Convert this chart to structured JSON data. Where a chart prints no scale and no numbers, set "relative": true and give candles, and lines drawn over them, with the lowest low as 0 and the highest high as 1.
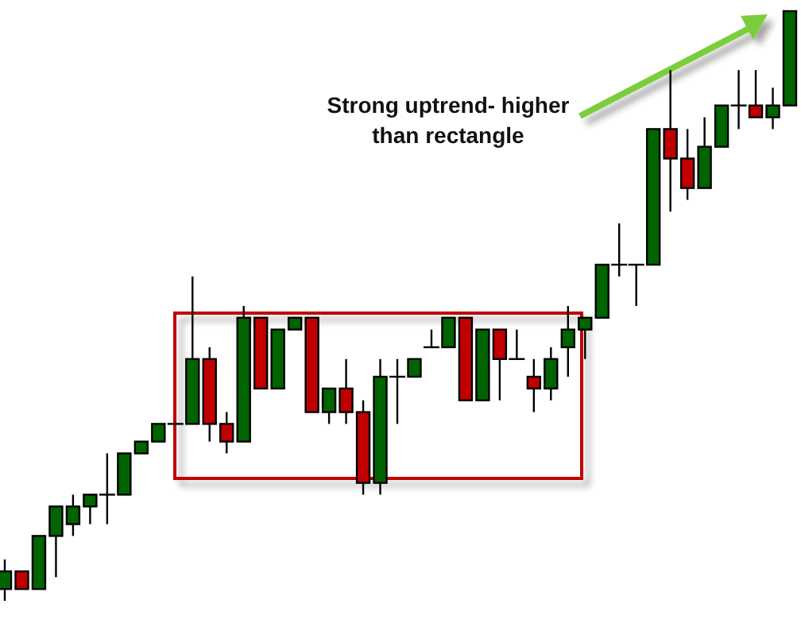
{
  "chart_data": {
    "type": "candlestick",
    "relative": true,
    "categories": [
      null,
      null,
      null,
      null,
      null,
      null,
      null,
      null,
      null,
      null,
      null,
      null,
      null,
      null,
      null,
      null,
      null,
      null,
      null,
      null,
      null,
      null,
      null,
      null,
      null,
      null,
      null,
      null,
      null,
      null,
      null,
      null,
      null,
      null,
      null,
      null,
      null,
      null,
      null,
      null,
      null,
      null,
      null,
      null,
      null,
      null,
      null
    ],
    "ohlc": [
      [
        0.02,
        0.07,
        0,
        0.05
      ],
      [
        0.05,
        0.05,
        0.02,
        0.02
      ],
      [
        0.02,
        0.11,
        0.02,
        0.11
      ],
      [
        0.11,
        0.16,
        0.04,
        0.16
      ],
      [
        0.13,
        0.18,
        0.11,
        0.16
      ],
      [
        0.16,
        0.18,
        0.13,
        0.18
      ],
      [
        0.18,
        0.25,
        0.13,
        0.18
      ],
      [
        0.18,
        0.25,
        0.18,
        0.25
      ],
      [
        0.25,
        0.27,
        0.25,
        0.27
      ],
      [
        0.27,
        0.3,
        0.27,
        0.3
      ],
      [
        0.3,
        0.3,
        0.3,
        0.3
      ],
      [
        0.3,
        0.55,
        0.3,
        0.41
      ],
      [
        0.41,
        0.43,
        0.27,
        0.3
      ],
      [
        0.3,
        0.32,
        0.25,
        0.27
      ],
      [
        0.27,
        0.5,
        0.27,
        0.48
      ],
      [
        0.48,
        0.48,
        0.36,
        0.36
      ],
      [
        0.36,
        0.46,
        0.36,
        0.46
      ],
      [
        0.46,
        0.48,
        0.46,
        0.48
      ],
      [
        0.48,
        0.48,
        0.32,
        0.32
      ],
      [
        0.32,
        0.36,
        0.3,
        0.36
      ],
      [
        0.36,
        0.41,
        0.3,
        0.32
      ],
      [
        0.32,
        0.34,
        0.18,
        0.2
      ],
      [
        0.2,
        0.41,
        0.18,
        0.38
      ],
      [
        0.38,
        0.41,
        0.3,
        0.38
      ],
      [
        0.38,
        0.41,
        0.38,
        0.41
      ],
      [
        0.43,
        0.46,
        0.43,
        0.43
      ],
      [
        0.43,
        0.48,
        0.43,
        0.48
      ],
      [
        0.48,
        0.48,
        0.34,
        0.34
      ],
      [
        0.34,
        0.46,
        0.34,
        0.46
      ],
      [
        0.46,
        0.46,
        0.34,
        0.41
      ],
      [
        0.41,
        0.46,
        0.41,
        0.41
      ],
      [
        0.38,
        0.41,
        0.32,
        0.36
      ],
      [
        0.36,
        0.43,
        0.34,
        0.41
      ],
      [
        0.43,
        0.5,
        0.38,
        0.46
      ],
      [
        0.46,
        0.48,
        0.41,
        0.48
      ],
      [
        0.48,
        0.57,
        0.48,
        0.57
      ],
      [
        0.57,
        0.64,
        0.55,
        0.57
      ],
      [
        0.57,
        0.57,
        0.5,
        0.57
      ],
      [
        0.57,
        0.8,
        0.57,
        0.8
      ],
      [
        0.8,
        0.9,
        0.66,
        0.75
      ],
      [
        0.75,
        0.8,
        0.68,
        0.7
      ],
      [
        0.7,
        0.82,
        0.7,
        0.77
      ],
      [
        0.77,
        0.84,
        0.77,
        0.84
      ],
      [
        0.84,
        0.9,
        0.8,
        0.84
      ],
      [
        0.84,
        0.9,
        0.82,
        0.82
      ],
      [
        0.82,
        0.87,
        0.8,
        0.84
      ],
      [
        0.84,
        1,
        0.84,
        1
      ]
    ],
    "colors": [
      "#006400",
      "#c00000",
      "#006400",
      "#006400",
      "#006400",
      "#006400",
      "#000000",
      "#006400",
      "#006400",
      "#006400",
      "#000000",
      "#006400",
      "#c00000",
      "#c00000",
      "#006400",
      "#c00000",
      "#006400",
      "#006400",
      "#c00000",
      "#006400",
      "#c00000",
      "#c00000",
      "#006400",
      "#000000",
      "#006400",
      "#000000",
      "#006400",
      "#c00000",
      "#006400",
      "#c00000",
      "#000000",
      "#c00000",
      "#006400",
      "#006400",
      "#006400",
      "#006400",
      "#000000",
      "#000000",
      "#006400",
      "#c00000",
      "#c00000",
      "#006400",
      "#006400",
      "#000000",
      "#c00000",
      "#006400",
      "#006400"
    ],
    "annotations": [
      "Strong uptrend- higher\nthan rectangle"
    ]
  }
}
